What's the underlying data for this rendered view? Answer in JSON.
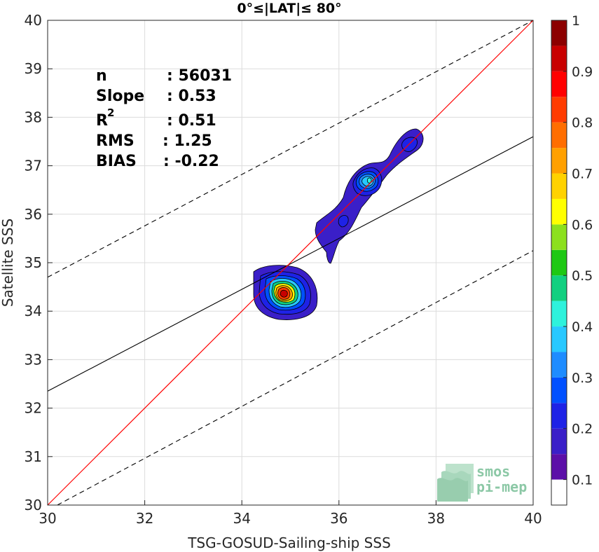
{
  "chart_data": {
    "type": "scatter",
    "title": "0°≤|LAT|≤ 80°",
    "xlabel": "TSG-GOSUD-Sailing-ship SSS",
    "ylabel": "Satellite SSS",
    "xlim": [
      30,
      40
    ],
    "ylim": [
      30,
      40
    ],
    "xticks": [
      "30",
      "32",
      "34",
      "36",
      "38",
      "40"
    ],
    "yticks": [
      "30",
      "31",
      "32",
      "33",
      "34",
      "35",
      "36",
      "37",
      "38",
      "39",
      "40"
    ],
    "grid": true,
    "stats": {
      "n_label": "n",
      "n_value": ": 56031",
      "slope_label": "Slope",
      "slope_value": ": 0.53",
      "r2_label": "R",
      "r2_sup": "2",
      "r2_value": ": 0.51",
      "rms_label": "RMS",
      "rms_value": ": 1.25",
      "bias_label": "BIAS",
      "bias_value": ": -0.22"
    },
    "lines": {
      "identity": {
        "color": "#ff0000",
        "from": [
          30,
          30
        ],
        "to": [
          40,
          40
        ]
      },
      "fit": {
        "color": "#000000",
        "from": [
          30,
          32.35
        ],
        "to": [
          40,
          37.6
        ]
      },
      "upper_dashed": {
        "from": [
          30,
          34.7
        ],
        "to": [
          40,
          40
        ]
      },
      "lower_dashed": {
        "from": [
          30.2,
          30
        ],
        "to": [
          40,
          35.25
        ]
      }
    },
    "density_clusters": [
      {
        "center": [
          34.9,
          34.35
        ],
        "peak": 0.9
      },
      {
        "center": [
          36.7,
          36.7
        ],
        "peak": 0.4
      },
      {
        "center": [
          37.45,
          37.45
        ],
        "peak": 0.2
      },
      {
        "center": [
          35.8,
          35.85
        ],
        "peak": 0.15
      }
    ],
    "colorbar": {
      "ticks": [
        "0.1",
        "0.2",
        "0.3",
        "0.4",
        "0.5",
        "0.6",
        "0.7",
        "0.8",
        "0.9",
        "1"
      ],
      "min": 0.05,
      "max": 1.0,
      "colors": [
        "#ffffff",
        "#5c0fa8",
        "#3a1fc8",
        "#1e22e6",
        "#0050ff",
        "#1e8cff",
        "#28c8ff",
        "#2ef2dc",
        "#12d080",
        "#1ec814",
        "#8ce01e",
        "#ffff00",
        "#ffd200",
        "#ffa000",
        "#ff6e00",
        "#ff3c00",
        "#ff0000",
        "#c80000",
        "#8c0000"
      ]
    }
  },
  "logo": {
    "line1": "smos",
    "line2": "pi-mep"
  }
}
